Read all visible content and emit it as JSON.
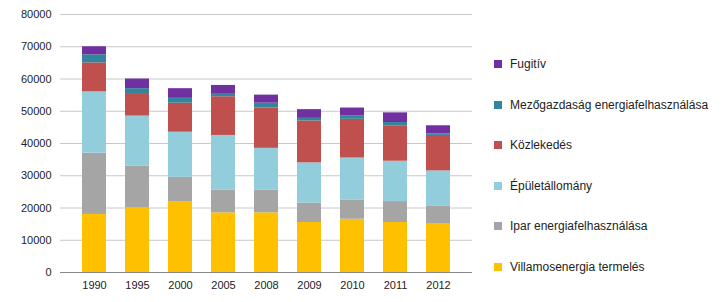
{
  "chart_data": {
    "type": "bar",
    "stacked": true,
    "grid": true,
    "legend": "right",
    "categories": [
      "1990",
      "1995",
      "2000",
      "2005",
      "2008",
      "2009",
      "2010",
      "2011",
      "2012"
    ],
    "series": [
      {
        "name": "Villamosenergia termelés",
        "color": "#FFC000",
        "values": [
          18000,
          20000,
          22000,
          18500,
          18500,
          15500,
          16500,
          15500,
          15000
        ]
      },
      {
        "name": "Ipar energiafelhasználása",
        "color": "#A5A5A5",
        "values": [
          19000,
          13000,
          7500,
          7000,
          7000,
          6000,
          6000,
          6500,
          5500
        ]
      },
      {
        "name": "Épületállomány",
        "color": "#92CDDC",
        "values": [
          19000,
          15500,
          14000,
          17000,
          13000,
          12500,
          13000,
          12500,
          11000
        ]
      },
      {
        "name": "Közlekedés",
        "color": "#C0504D",
        "values": [
          9000,
          7000,
          9000,
          12000,
          12500,
          13000,
          12000,
          11000,
          11000
        ]
      },
      {
        "name": "Mezőgazdaság energiafelhasználása",
        "color": "#31859C",
        "values": [
          2500,
          1500,
          1500,
          1000,
          1500,
          800,
          1000,
          1000,
          500
        ]
      },
      {
        "name": "Fugitív",
        "color": "#7030A0",
        "values": [
          2500,
          3000,
          3000,
          2500,
          2500,
          2700,
          2500,
          3000,
          2500
        ]
      }
    ],
    "ylim": [
      0,
      80000
    ],
    "yticks": [
      0,
      10000,
      20000,
      30000,
      40000,
      50000,
      60000,
      70000,
      80000
    ]
  }
}
